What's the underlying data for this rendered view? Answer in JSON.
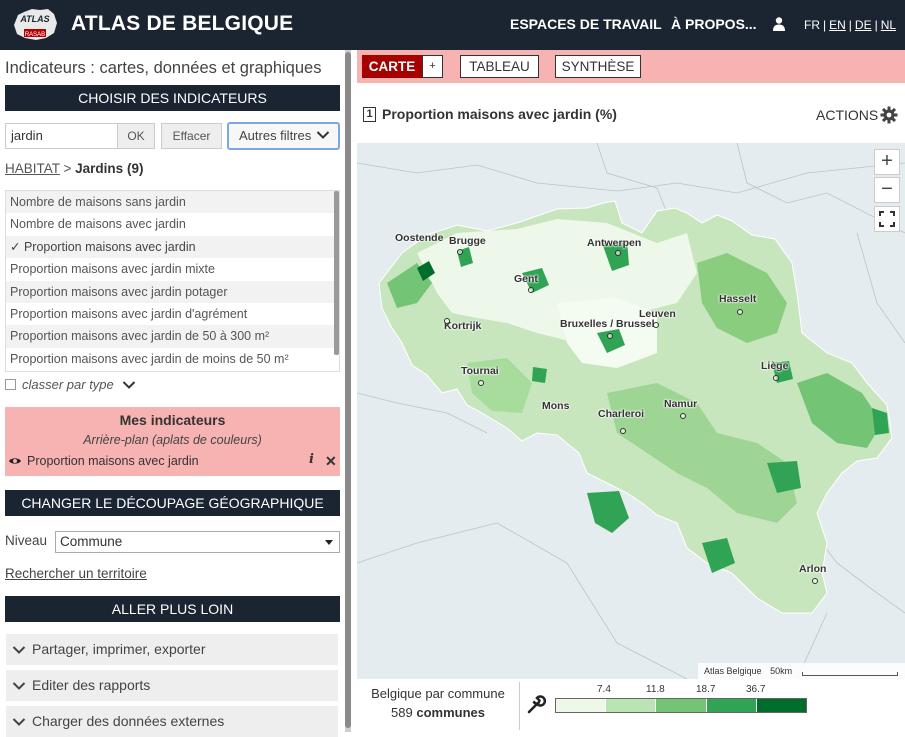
{
  "header": {
    "logo_text": "ATLAS",
    "logo_subtext": "RASAB",
    "title": "ATLAS DE BELGIQUE",
    "nav_workspaces": "ESPACES DE TRAVAIL",
    "nav_about": "À PROPOS...",
    "languages": [
      "FR",
      "EN",
      "DE",
      "NL"
    ]
  },
  "sidebar": {
    "panel_title": "Indicateurs : cartes, données et graphiques",
    "choose_title": "CHOISIR DES INDICATEURS",
    "search": {
      "value": "jardin",
      "ok_label": "OK",
      "clear_label": "Effacer",
      "filters_label": "Autres filtres"
    },
    "breadcrumb": {
      "parent": "HABITAT",
      "separator": " > ",
      "current": "Jardins",
      "count": "(9)"
    },
    "indicators": [
      "Nombre de maisons sans jardin",
      "Nombre de maisons avec jardin",
      "✓ Proportion maisons avec jardin",
      "Proportion maisons avec jardin mixte",
      "Proportion maisons avec jardin potager",
      "Proportion maisons avec jardin d'agrément",
      "Proportion maisons avec jardin de 50 à 300 m²",
      "Proportion maisons avec jardin de moins de 50 m²"
    ],
    "classify_label": "classer par type",
    "my_indicators": {
      "title": "Mes indicateurs",
      "subtitle": "Arrière-plan (aplats de couleurs)",
      "item": "Proportion maisons avec jardin"
    },
    "geo_title": "CHANGER LE DÉCOUPAGE GÉOGRAPHIQUE",
    "level_label": "Niveau",
    "level_value": "Commune",
    "find_territory": "Rechercher un territoire",
    "go_further_title": "ALLER PLUS LOIN",
    "accordions": [
      "Partager, imprimer, exporter",
      "Editer des rapports",
      "Charger des données externes"
    ]
  },
  "tabs": {
    "carte": "CARTE",
    "plus": "+",
    "tableau": "TABLEAU",
    "synthese": "SYNTHÈSE"
  },
  "map": {
    "number": "1",
    "title": "Proportion maisons avec jardin (%)",
    "actions_label": "ACTIONS",
    "zoom_in": "+",
    "zoom_out": "−",
    "attribution": "Atlas Belgique",
    "scale_label": "50km",
    "cities": [
      "Oostende",
      "Brugge",
      "Antwerpen",
      "Gent",
      "Hasselt",
      "Kortrijk",
      "Bruxelles / Brussel",
      "Leuven",
      "Liège",
      "Tournai",
      "Mons",
      "Charleroi",
      "Namur",
      "Arlon"
    ]
  },
  "legend": {
    "line1": "Belgique par commune",
    "count": "589",
    "count_label": "communes",
    "breaks": [
      "7.4",
      "11.8",
      "18.7",
      "36.7"
    ],
    "colors": [
      "#edf8e9",
      "#bae4b3",
      "#74c476",
      "#31a354",
      "#006d2c"
    ]
  }
}
